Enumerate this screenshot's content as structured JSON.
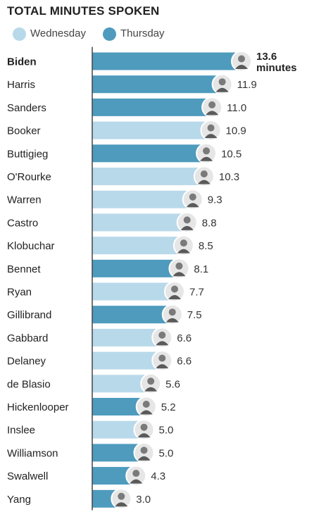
{
  "title": "TOTAL MINUTES SPOKEN",
  "colors": {
    "wednesday": "#b8d9ea",
    "thursday": "#4e9bbd",
    "axis": "#444444",
    "avatar_border": "#ffffff"
  },
  "legend": [
    {
      "label": "Wednesday",
      "color_key": "wednesday"
    },
    {
      "label": "Thursday",
      "color_key": "thursday"
    }
  ],
  "chart_data": {
    "type": "bar",
    "orientation": "horizontal",
    "title": "TOTAL MINUTES SPOKEN",
    "unit_label": "minutes",
    "categories": [
      "Biden",
      "Harris",
      "Sanders",
      "Booker",
      "Buttigieg",
      "O'Rourke",
      "Warren",
      "Castro",
      "Klobuchar",
      "Bennet",
      "Ryan",
      "Gillibrand",
      "Gabbard",
      "Delaney",
      "de Blasio",
      "Hickenlooper",
      "Inslee",
      "Williamson",
      "Swalwell",
      "Yang"
    ],
    "values": [
      13.6,
      11.9,
      11.0,
      10.9,
      10.5,
      10.3,
      9.3,
      8.8,
      8.5,
      8.1,
      7.7,
      7.5,
      6.6,
      6.6,
      5.6,
      5.2,
      5.0,
      5.0,
      4.3,
      3.0
    ],
    "value_labels": [
      "13.6",
      "11.9",
      "11.0",
      "10.9",
      "10.5",
      "10.3",
      "9.3",
      "8.8",
      "8.5",
      "8.1",
      "7.7",
      "7.5",
      "6.6",
      "6.6",
      "5.6",
      "5.2",
      "5.0",
      "5.0",
      "4.3",
      "3.0"
    ],
    "debate_night": [
      "Thursday",
      "Thursday",
      "Thursday",
      "Wednesday",
      "Thursday",
      "Wednesday",
      "Wednesday",
      "Wednesday",
      "Wednesday",
      "Thursday",
      "Wednesday",
      "Thursday",
      "Wednesday",
      "Wednesday",
      "Wednesday",
      "Thursday",
      "Wednesday",
      "Thursday",
      "Thursday",
      "Thursday"
    ],
    "highlight_first": true,
    "xlim": [
      0,
      13.6
    ]
  }
}
